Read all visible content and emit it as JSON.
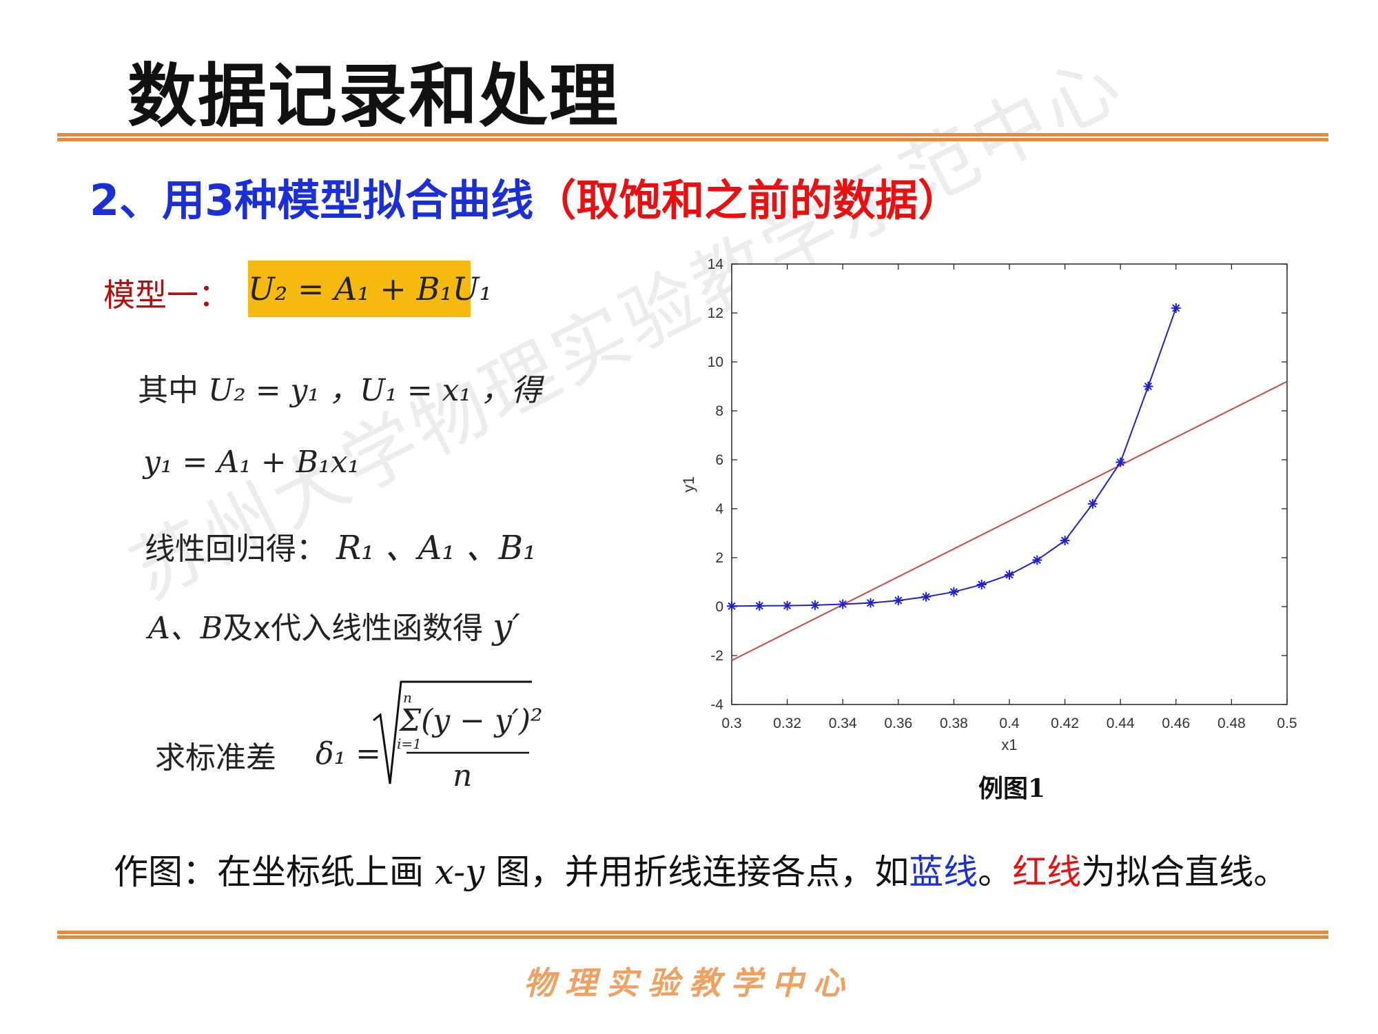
{
  "header": {
    "title": "数据记录和处理"
  },
  "subtitle": {
    "main": "2、用3种模型拟合曲线",
    "note": "（取饱和之前的数据）"
  },
  "model": {
    "label": "模型一：",
    "formula": "U₂ = A₁ + B₁U₁"
  },
  "lines": [
    {
      "text": "其中",
      "math": "U₂ = y₁ ，U₁ = x₁ ，得"
    },
    {
      "math": "y₁ = A₁ + B₁x₁"
    },
    {
      "text": "线性回归得：",
      "math": "R₁ 、A₁ 、B₁"
    },
    {
      "math": "A、B",
      "text": "及x代入线性函数得",
      "result": "y′"
    }
  ],
  "std": {
    "label": "求标准差",
    "lhs": "δ₁ =",
    "upper": "n",
    "numerator": "Σ(y − y′)²",
    "lower": "i=1",
    "denominator": "n"
  },
  "chart_data": {
    "type": "line",
    "xlabel": "x1",
    "ylabel": "y1",
    "xlim": [
      0.3,
      0.5
    ],
    "xticks": [
      0.3,
      0.32,
      0.34,
      0.36,
      0.38,
      0.4,
      0.42,
      0.44,
      0.46,
      0.48,
      0.5
    ],
    "ylim": [
      -4,
      14
    ],
    "yticks": [
      -4,
      -2,
      0,
      2,
      4,
      6,
      8,
      10,
      12,
      14
    ],
    "grid": false,
    "series": [
      {
        "color": "#2020cc",
        "marker": "star",
        "x": [
          0.3,
          0.31,
          0.32,
          0.33,
          0.34,
          0.35,
          0.36,
          0.37,
          0.38,
          0.39,
          0.4,
          0.41,
          0.42,
          0.43,
          0.44,
          0.45,
          0.46
        ],
        "values": [
          0.02,
          0.03,
          0.04,
          0.06,
          0.1,
          0.15,
          0.25,
          0.4,
          0.6,
          0.9,
          1.3,
          1.9,
          2.7,
          4.2,
          5.9,
          9.0,
          12.2
        ]
      },
      {
        "color": "#d04545",
        "x": [
          0.3,
          0.5
        ],
        "values": [
          -2.2,
          9.2
        ]
      }
    ]
  },
  "caption": "例图1",
  "note": [
    "作图：在坐标纸上画 ",
    "x-y",
    " 图，并用折线连接各点，如",
    "蓝线",
    "。",
    "红线",
    "为拟合直线。"
  ],
  "watermark": "苏州大学物理实验教学示范中心",
  "footer": "物理实验教学中心"
}
